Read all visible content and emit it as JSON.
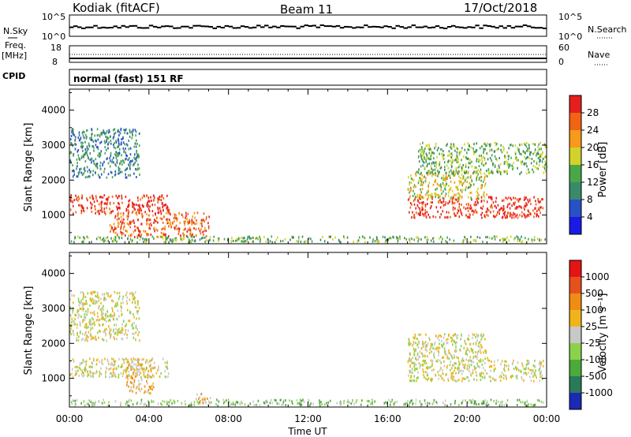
{
  "header": {
    "station": "Kodiak (fitACF)",
    "beam": "Beam 11",
    "date": "17/Oct/2018"
  },
  "aux_panels": {
    "nsky_label": "N.Sky",
    "nsky_ticks": [
      "10^5",
      "10^0"
    ],
    "nsearch_label": "N.Search",
    "nsearch_ticks": [
      "10^5",
      "10^0"
    ],
    "freq_label_line1": "Freq.",
    "freq_label_line2": "[MHz]",
    "freq_ticks": [
      "18",
      "8"
    ],
    "nave_label": "Nave",
    "nave_ticks": [
      "60",
      "0"
    ],
    "cpid_label": "CPID",
    "cpid_text": "normal (fast) 151 RF"
  },
  "chart_data": [
    {
      "type": "heatmap",
      "title": "",
      "ylabel": "Slant Range [km]",
      "xlabel": "Time UT",
      "x_ticks": [
        "00:00",
        "04:00",
        "08:00",
        "12:00",
        "16:00",
        "20:00",
        "00:00"
      ],
      "xlim_hours": [
        0,
        24
      ],
      "ylim_km": [
        180,
        4600
      ],
      "y_ticks": [
        1000,
        2000,
        3000,
        4000
      ],
      "colorbar": {
        "label": "Power [dB]",
        "ticks": [
          "4",
          "8",
          "12",
          "16",
          "20",
          "24",
          "28"
        ],
        "colors": [
          "#1a1ae6",
          "#2a50c8",
          "#3a8a6a",
          "#48a848",
          "#d2d22a",
          "#f59a1a",
          "#f06414",
          "#e61e1e"
        ]
      },
      "scatter_regions": [
        {
          "t0": 0.0,
          "t1": 5.0,
          "r0": 1050,
          "r1": 1600,
          "level": 7
        },
        {
          "t0": 2.0,
          "t1": 7.0,
          "r0": 400,
          "r1": 1100,
          "level": 6
        },
        {
          "t0": 17.0,
          "t1": 23.8,
          "r0": 950,
          "r1": 1550,
          "level": 7
        },
        {
          "t0": 17.0,
          "t1": 21.0,
          "r0": 1500,
          "r1": 2300,
          "level": 4
        },
        {
          "t0": 0.0,
          "t1": 3.5,
          "r0": 2100,
          "r1": 3500,
          "level": 2
        },
        {
          "t0": 17.5,
          "t1": 24.0,
          "r0": 2200,
          "r1": 3100,
          "level": 3
        },
        {
          "t0": 0.0,
          "t1": 24.0,
          "r0": 250,
          "r1": 420,
          "level": 3
        }
      ]
    },
    {
      "type": "heatmap",
      "title": "",
      "ylabel": "Slant Range [km]",
      "xlabel": "Time UT",
      "x_ticks": [
        "00:00",
        "04:00",
        "08:00",
        "12:00",
        "16:00",
        "20:00",
        "00:00"
      ],
      "xlim_hours": [
        0,
        24
      ],
      "ylim_km": [
        180,
        4600
      ],
      "y_ticks": [
        1000,
        2000,
        3000,
        4000
      ],
      "colorbar": {
        "label": "Velocity [m s⁻¹]",
        "ticks": [
          "1000",
          "500",
          "100",
          "25",
          "-25",
          "-100",
          "-500",
          "-1000"
        ],
        "colors": [
          "#1a2ab4",
          "#2a7a5a",
          "#4aaa3a",
          "#8ad24a",
          "#c8c8c8",
          "#f0b41a",
          "#f08c14",
          "#e6501e",
          "#e61414"
        ]
      },
      "scatter_regions": [
        {
          "t0": 0.0,
          "t1": 5.0,
          "r0": 1050,
          "r1": 1600,
          "level": 4
        },
        {
          "t0": 2.8,
          "t1": 4.2,
          "r0": 600,
          "r1": 1600,
          "level": 5
        },
        {
          "t0": 17.0,
          "t1": 23.8,
          "r0": 950,
          "r1": 1550,
          "level": 4
        },
        {
          "t0": 17.0,
          "t1": 21.0,
          "r0": 1500,
          "r1": 2300,
          "level": 4
        },
        {
          "t0": 0.0,
          "t1": 3.5,
          "r0": 2100,
          "r1": 3500,
          "level": 4
        },
        {
          "t0": 0.0,
          "t1": 24.0,
          "r0": 250,
          "r1": 420,
          "level": 3
        },
        {
          "t0": 6.3,
          "t1": 7.1,
          "r0": 300,
          "r1": 600,
          "level": 5
        }
      ]
    }
  ]
}
